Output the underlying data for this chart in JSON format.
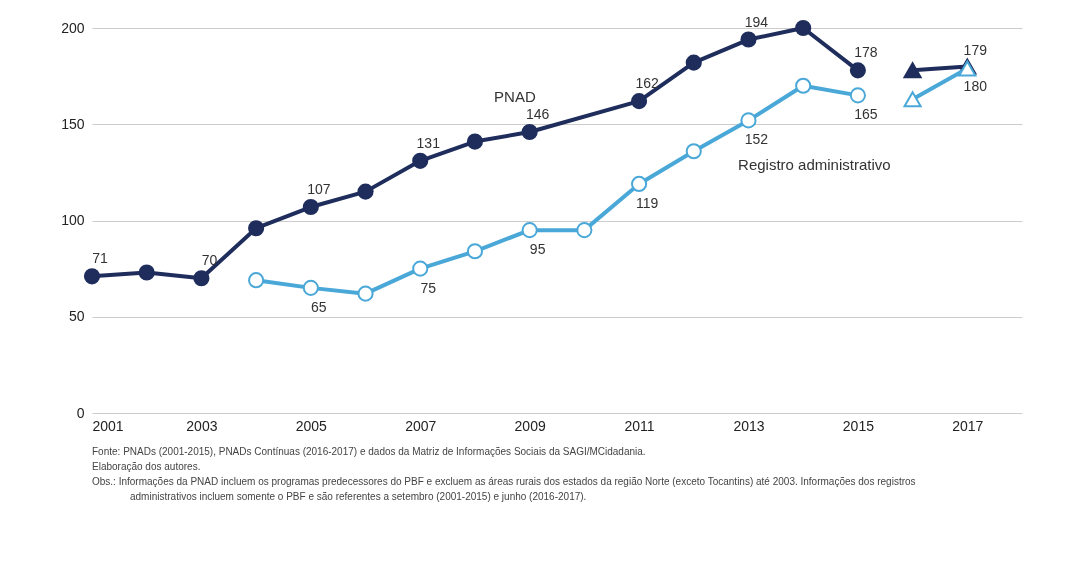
{
  "chart_data": {
    "type": "line",
    "xlim": [
      2001,
      2018
    ],
    "xticks": [
      2001,
      2003,
      2005,
      2007,
      2009,
      2011,
      2013,
      2015,
      2017
    ],
    "ylim": [
      0,
      200
    ],
    "yticks": [
      0,
      50,
      100,
      150,
      200
    ],
    "grid": "y",
    "series": [
      {
        "name": "PNAD",
        "color": "#1f2d5c",
        "marker": "circle",
        "x": [
          2001,
          2002,
          2003,
          2004,
          2005,
          2006,
          2007,
          2008,
          2009,
          2011,
          2012,
          2013,
          2014,
          2015
        ],
        "values": [
          71,
          73,
          70,
          96,
          107,
          115,
          131,
          141,
          146,
          162,
          182,
          194,
          200,
          178
        ],
        "value_labels": [
          "71",
          null,
          "70",
          null,
          "107",
          null,
          "131",
          null,
          "146",
          "162",
          null,
          "194",
          null,
          "178"
        ]
      },
      {
        "name": "Registro administrativo",
        "color": "#4aa8d8",
        "marker": "circle",
        "x": [
          2004,
          2005,
          2006,
          2007,
          2008,
          2009,
          2010,
          2011,
          2012,
          2013,
          2014,
          2015
        ],
        "values": [
          69,
          65,
          62,
          75,
          84,
          95,
          95,
          119,
          136,
          152,
          170,
          165
        ],
        "value_labels": [
          null,
          "65",
          null,
          "75",
          null,
          "95",
          null,
          "119",
          null,
          "152",
          null,
          "165"
        ]
      },
      {
        "color": "#1f2d5c",
        "marker": "triangle",
        "x": [
          2016,
          2017
        ],
        "values": [
          178,
          180
        ],
        "value_labels": [
          null,
          "180"
        ]
      },
      {
        "color": "#4aa8d8",
        "marker": "triangle",
        "x": [
          2016,
          2017
        ],
        "values": [
          163,
          179
        ],
        "value_labels": [
          null,
          "179"
        ]
      }
    ],
    "annotations": [
      "Fonte: PNADs (2001-2015), PNADs Contínuas (2016-2017) e dados da Matriz de Informações Sociais da SAGI/MCidadania.",
      "Elaboração dos autores.",
      "Obs.: Informações da PNAD incluem os programas predecessores do PBF e excluem as áreas rurais dos estados da região Norte (exceto Tocantins) até 2003. Informações dos registros administrativos incluem somente o PBF e são referentes a setembro (2001-2015) e junho (2016-2017)."
    ]
  }
}
